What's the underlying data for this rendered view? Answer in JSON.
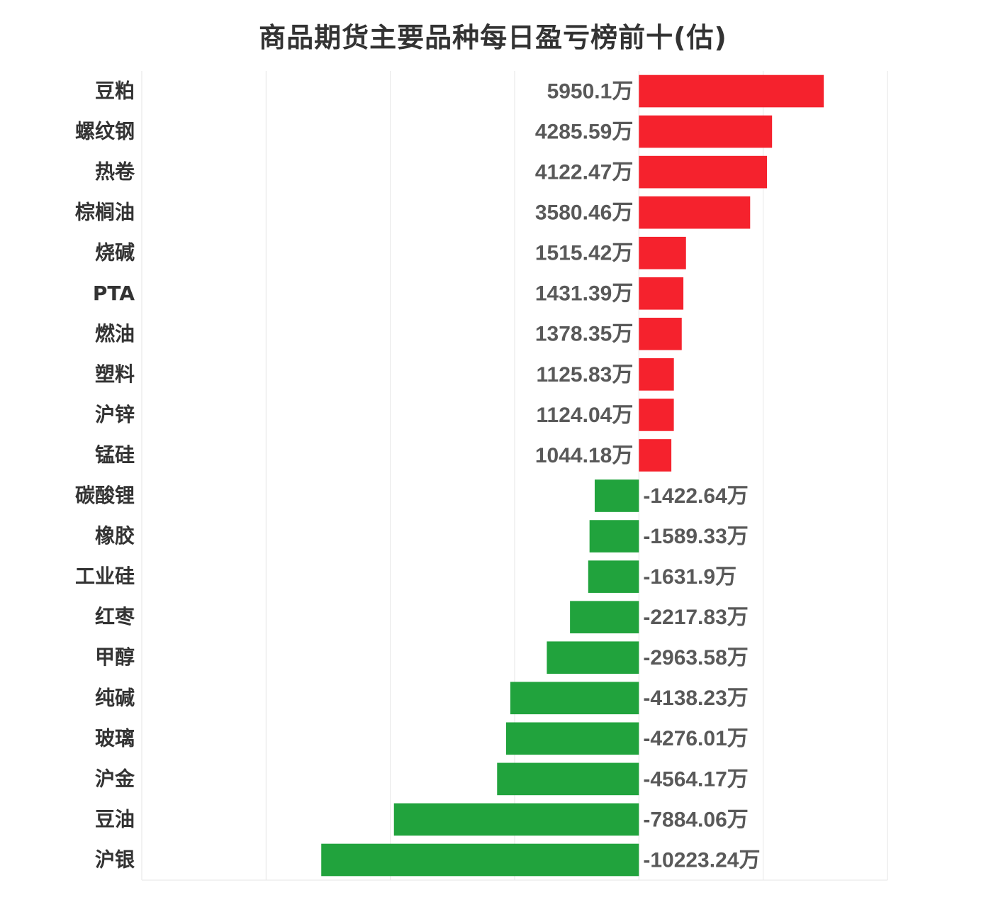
{
  "chart_data": {
    "type": "bar",
    "orientation": "horizontal",
    "title": "商品期货主要品种每日盈亏榜前十(估)",
    "unit": "万",
    "xlim": [
      -16000,
      8000
    ],
    "grid": true,
    "categories": [
      "豆粕",
      "螺纹钢",
      "热卷",
      "棕榈油",
      "烧碱",
      "PTA",
      "燃油",
      "塑料",
      "沪锌",
      "锰硅",
      "碳酸锂",
      "橡胶",
      "工业硅",
      "红枣",
      "甲醇",
      "纯碱",
      "玻璃",
      "沪金",
      "豆油",
      "沪银"
    ],
    "values": [
      5950.1,
      4285.59,
      4122.47,
      3580.46,
      1515.42,
      1431.39,
      1378.35,
      1125.83,
      1124.04,
      1044.18,
      -1422.64,
      -1589.33,
      -1631.9,
      -2217.83,
      -2963.58,
      -4138.23,
      -4276.01,
      -4564.17,
      -7884.06,
      -10223.24
    ],
    "value_labels": [
      "5950.1万",
      "4285.59万",
      "4122.47万",
      "3580.46万",
      "1515.42万",
      "1431.39万",
      "1378.35万",
      "1125.83万",
      "1124.04万",
      "1044.18万",
      "-1422.64万",
      "-1589.33万",
      "-1631.9万",
      "-2217.83万",
      "-2963.58万",
      "-4138.23万",
      "-4276.01万",
      "-4564.17万",
      "-7884.06万",
      "-10223.24万"
    ],
    "colors": {
      "positive": "#f5222d",
      "negative": "#21a33d",
      "grid": "#e6e6e6",
      "category_text": "#333333",
      "value_text": "#595959"
    }
  }
}
